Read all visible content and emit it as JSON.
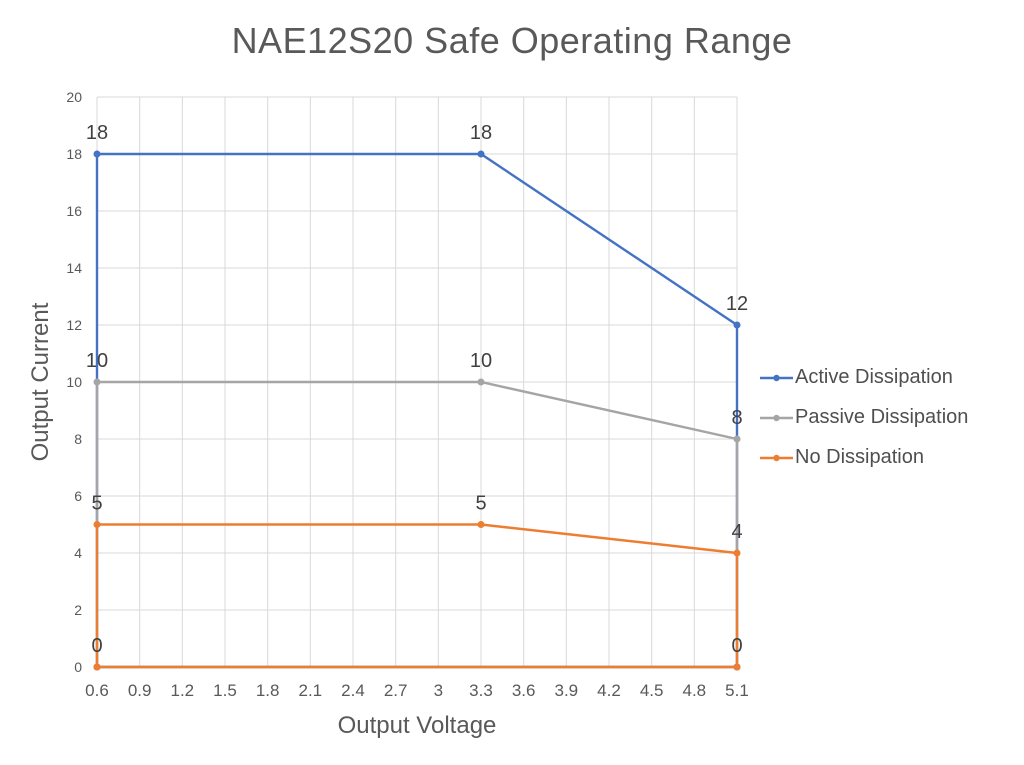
{
  "chart_data": {
    "type": "line",
    "title": "NAE12S20 Safe Operating Range",
    "xlabel": "Output Voltage",
    "ylabel": "Output Current",
    "xlim": [
      0.6,
      5.1
    ],
    "ylim": [
      0,
      20
    ],
    "grid": true,
    "legend_position": "right",
    "x_ticks": [
      "0.6",
      "0.9",
      "1.2",
      "1.5",
      "1.8",
      "2.1",
      "2.4",
      "2.7",
      "3",
      "3.3",
      "3.6",
      "3.9",
      "4.2",
      "4.5",
      "4.8",
      "5.1"
    ],
    "y_ticks": [
      "0",
      "2",
      "4",
      "6",
      "8",
      "10",
      "12",
      "14",
      "16",
      "18",
      "20"
    ],
    "gridline_color": "#d9d9d9",
    "series": [
      {
        "name": "Active Dissipation",
        "color": "#4472C4",
        "points": [
          {
            "x": 0.6,
            "y": 18,
            "label": "18"
          },
          {
            "x": 3.3,
            "y": 18,
            "label": "18"
          },
          {
            "x": 5.1,
            "y": 12,
            "label": "12"
          }
        ],
        "drops_to_zero": true,
        "zero_labels": null
      },
      {
        "name": "Passive Dissipation",
        "color": "#A5A5A5",
        "points": [
          {
            "x": 0.6,
            "y": 10,
            "label": "10"
          },
          {
            "x": 3.3,
            "y": 10,
            "label": "10"
          },
          {
            "x": 5.1,
            "y": 8,
            "label": "8"
          }
        ],
        "drops_to_zero": true,
        "zero_labels": null
      },
      {
        "name": "No Dissipation",
        "color": "#ED7D31",
        "points": [
          {
            "x": 0.6,
            "y": 5,
            "label": "5"
          },
          {
            "x": 3.3,
            "y": 5,
            "label": "5"
          },
          {
            "x": 5.1,
            "y": 4,
            "label": "4"
          }
        ],
        "drops_to_zero": true,
        "zero_labels": [
          "0",
          "0"
        ]
      }
    ]
  }
}
